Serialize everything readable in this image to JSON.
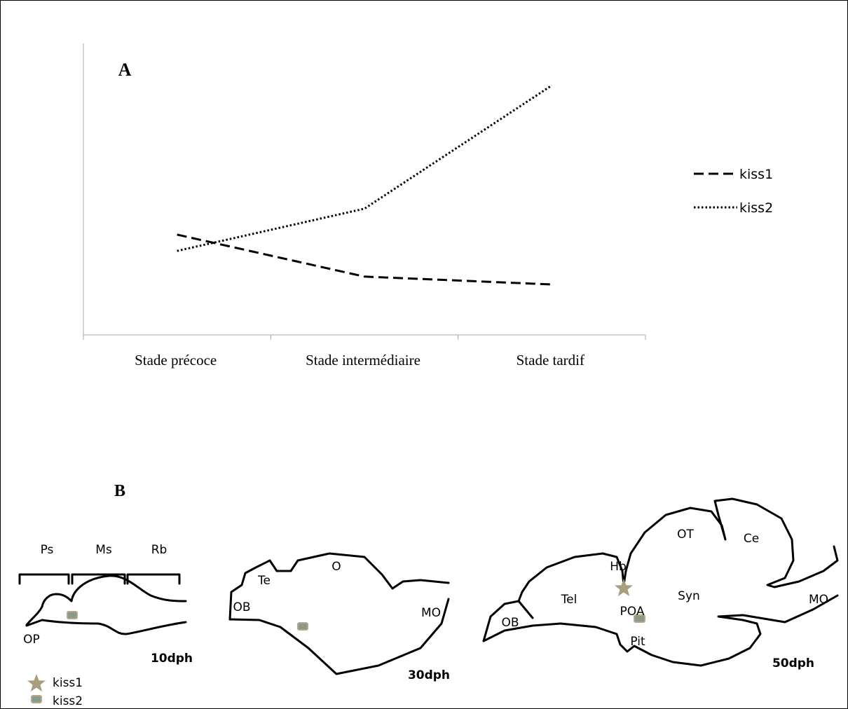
{
  "chart_data": {
    "type": "line",
    "panel_label": "A",
    "categories": [
      "Stade précoce",
      "Stade intermédiaire",
      "Stade tardif"
    ],
    "series": [
      {
        "name": "kiss1",
        "color": "#000000",
        "dash": "dashed",
        "values": [
          34.4,
          20,
          17.3
        ]
      },
      {
        "name": "kiss2",
        "color": "#000000",
        "dash": "dotted",
        "values": [
          28.8,
          43.3,
          85.6
        ]
      }
    ],
    "ylim": [
      0,
      100
    ],
    "grid": false,
    "legend": "right"
  },
  "figure_b": {
    "panel_label": "B",
    "brains": [
      {
        "stage": "10dph",
        "regions": [
          "Ps",
          "Ms",
          "Rb",
          "OP"
        ]
      },
      {
        "stage": "30dph",
        "regions": [
          "Te",
          "O",
          "OB",
          "MO"
        ]
      },
      {
        "stage": "50dph",
        "regions": [
          "OT",
          "Ce",
          "Hb",
          "Tel",
          "Syn",
          "POA",
          "OB",
          "MO",
          "Pit"
        ]
      }
    ],
    "legend": [
      "kiss1",
      "kiss2"
    ]
  }
}
